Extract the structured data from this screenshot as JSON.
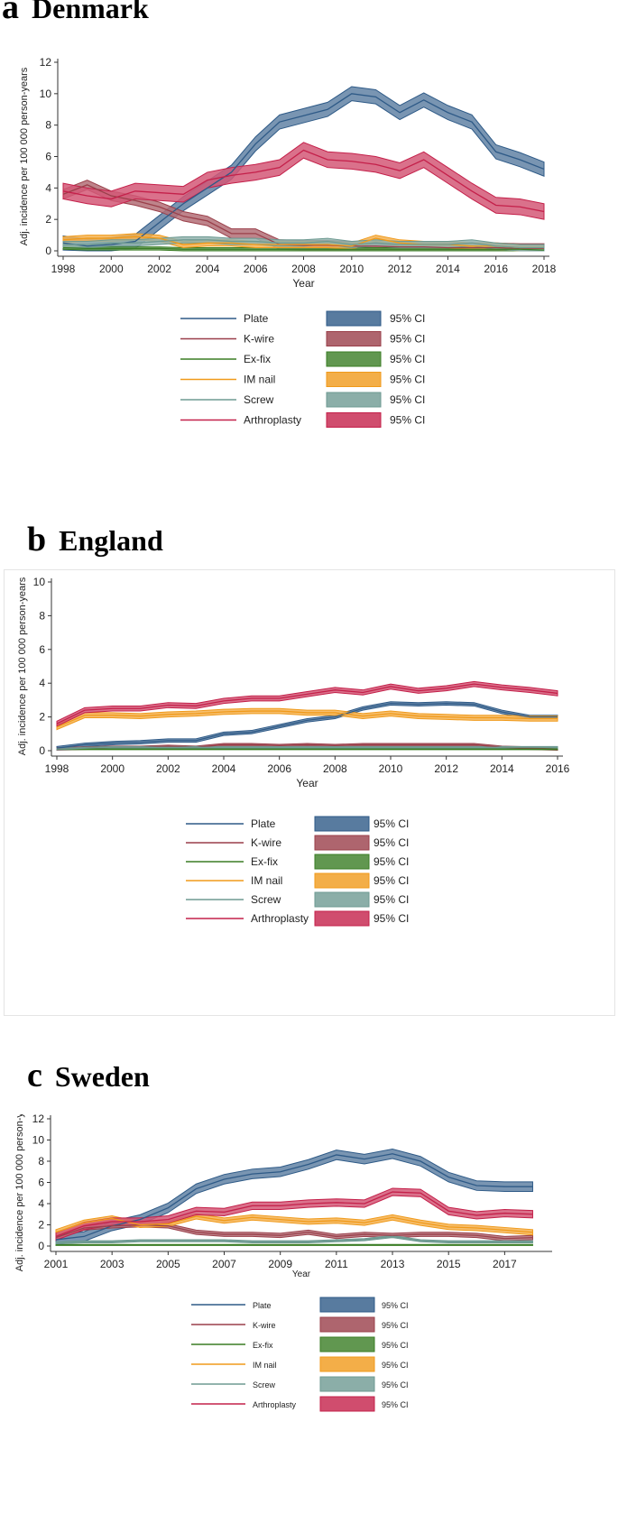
{
  "panels": [
    {
      "letter": "a",
      "country": "Denmark"
    },
    {
      "letter": "b",
      "country": "England"
    },
    {
      "letter": "c",
      "country": "Sweden"
    }
  ],
  "colors": {
    "Plate": "#2e5a87",
    "K-wire": "#9a3f4a",
    "Ex-fix": "#3a7d24",
    "IM nail": "#f09a1a",
    "Screw": "#6e9a92",
    "Arthroplasty": "#c4204a"
  },
  "chart_data": [
    {
      "type": "line",
      "panel": "a",
      "title": "Denmark",
      "xlabel": "Year",
      "ylabel": "Adj. incidence per 100 000 person-years",
      "xlim": [
        1998,
        2018
      ],
      "ylim": [
        0,
        12
      ],
      "xticks": [
        1998,
        2000,
        2002,
        2004,
        2006,
        2008,
        2010,
        2012,
        2014,
        2016,
        2018
      ],
      "yticks": [
        0,
        2,
        4,
        6,
        8,
        10,
        12
      ],
      "x": [
        1998,
        1999,
        2000,
        2001,
        2002,
        2003,
        2004,
        2005,
        2006,
        2007,
        2008,
        2009,
        2010,
        2011,
        2012,
        2013,
        2014,
        2015,
        2016,
        2017,
        2018
      ],
      "series": [
        {
          "name": "Plate",
          "values": [
            0.5,
            0.3,
            0.4,
            0.6,
            1.8,
            3.0,
            4.0,
            5.0,
            6.8,
            8.2,
            8.6,
            9.0,
            10.0,
            9.8,
            8.8,
            9.6,
            8.8,
            8.2,
            6.3,
            5.8,
            5.2
          ],
          "ci_width": 0.9
        },
        {
          "name": "K-wire",
          "values": [
            3.6,
            4.2,
            3.5,
            3.2,
            2.8,
            2.2,
            1.9,
            1.1,
            1.1,
            0.4,
            0.35,
            0.35,
            0.3,
            0.3,
            0.25,
            0.25,
            0.2,
            0.2,
            0.2,
            0.15,
            0.15
          ],
          "ci_width": 0.6
        },
        {
          "name": "Ex-fix",
          "values": [
            0.2,
            0.15,
            0.15,
            0.15,
            0.15,
            0.1,
            0.1,
            0.1,
            0.1,
            0.1,
            0.1,
            0.1,
            0.1,
            0.1,
            0.1,
            0.1,
            0.1,
            0.1,
            0.1,
            0.1,
            0.05
          ],
          "ci_width": 0.2
        },
        {
          "name": "IM nail",
          "values": [
            0.7,
            0.8,
            0.8,
            0.9,
            0.8,
            0.4,
            0.5,
            0.5,
            0.4,
            0.4,
            0.4,
            0.4,
            0.3,
            0.8,
            0.5,
            0.4,
            0.4,
            0.3,
            0.3,
            0.2,
            0.2
          ],
          "ci_width": 0.4
        },
        {
          "name": "Screw",
          "values": [
            0.4,
            0.4,
            0.5,
            0.5,
            0.6,
            0.7,
            0.7,
            0.6,
            0.6,
            0.5,
            0.5,
            0.6,
            0.4,
            0.5,
            0.4,
            0.4,
            0.4,
            0.5,
            0.3,
            0.2,
            0.2
          ],
          "ci_width": 0.4
        },
        {
          "name": "Arthroplasty",
          "values": [
            3.8,
            3.5,
            3.3,
            3.8,
            3.7,
            3.6,
            4.5,
            4.8,
            5.0,
            5.3,
            6.4,
            5.8,
            5.7,
            5.5,
            5.1,
            5.8,
            4.8,
            3.8,
            2.9,
            2.8,
            2.5
          ],
          "ci_width": 1.0
        }
      ],
      "legend": [
        {
          "label": "Plate",
          "ci_label": "95% CI"
        },
        {
          "label": "K-wire",
          "ci_label": "95% CI"
        },
        {
          "label": "Ex-fix",
          "ci_label": "95% CI"
        },
        {
          "label": "IM nail",
          "ci_label": "95% CI"
        },
        {
          "label": "Screw",
          "ci_label": "95% CI"
        },
        {
          "label": "Arthroplasty",
          "ci_label": "95% CI"
        }
      ]
    },
    {
      "type": "line",
      "panel": "b",
      "title": "England",
      "xlabel": "Year",
      "ylabel": "Adj. incidence per 100 000 person-years",
      "xlim": [
        1998,
        2016
      ],
      "ylim": [
        0,
        10
      ],
      "xticks": [
        1998,
        2000,
        2002,
        2004,
        2006,
        2008,
        2010,
        2012,
        2014,
        2016
      ],
      "yticks": [
        0,
        2,
        4,
        6,
        8,
        10
      ],
      "x": [
        1998,
        1999,
        2000,
        2001,
        2002,
        2003,
        2004,
        2005,
        2006,
        2007,
        2008,
        2009,
        2010,
        2011,
        2012,
        2013,
        2014,
        2015,
        2016
      ],
      "series": [
        {
          "name": "Plate",
          "values": [
            0.15,
            0.35,
            0.45,
            0.5,
            0.6,
            0.6,
            1.0,
            1.1,
            1.45,
            1.8,
            2.0,
            2.5,
            2.8,
            2.75,
            2.8,
            2.75,
            2.3,
            2.0,
            2.0
          ],
          "ci_width": 0.2
        },
        {
          "name": "K-wire",
          "values": [
            0.1,
            0.15,
            0.2,
            0.2,
            0.25,
            0.2,
            0.35,
            0.35,
            0.3,
            0.35,
            0.3,
            0.35,
            0.35,
            0.35,
            0.35,
            0.35,
            0.2,
            0.15,
            0.1
          ],
          "ci_width": 0.15
        },
        {
          "name": "Ex-fix",
          "values": [
            0.1,
            0.1,
            0.1,
            0.1,
            0.1,
            0.1,
            0.1,
            0.1,
            0.1,
            0.1,
            0.1,
            0.1,
            0.1,
            0.1,
            0.1,
            0.1,
            0.1,
            0.1,
            0.1
          ],
          "ci_width": 0.08
        },
        {
          "name": "IM nail",
          "values": [
            1.4,
            2.1,
            2.1,
            2.05,
            2.15,
            2.2,
            2.3,
            2.35,
            2.35,
            2.25,
            2.25,
            2.05,
            2.2,
            2.05,
            2.0,
            1.95,
            1.95,
            1.9,
            1.9
          ],
          "ci_width": 0.3
        },
        {
          "name": "Screw",
          "values": [
            0.1,
            0.15,
            0.2,
            0.2,
            0.2,
            0.2,
            0.2,
            0.2,
            0.2,
            0.2,
            0.2,
            0.2,
            0.2,
            0.2,
            0.2,
            0.2,
            0.2,
            0.2,
            0.2
          ],
          "ci_width": 0.1
        },
        {
          "name": "Arthroplasty",
          "values": [
            1.6,
            2.4,
            2.5,
            2.5,
            2.7,
            2.65,
            2.95,
            3.1,
            3.1,
            3.35,
            3.6,
            3.45,
            3.8,
            3.55,
            3.7,
            3.95,
            3.75,
            3.6,
            3.4
          ],
          "ci_width": 0.3
        }
      ],
      "legend": [
        {
          "label": "Plate",
          "ci_label": "95% CI"
        },
        {
          "label": "K-wire",
          "ci_label": "95% CI"
        },
        {
          "label": "Ex-fix",
          "ci_label": "95% CI"
        },
        {
          "label": "IM nail",
          "ci_label": "95% CI"
        },
        {
          "label": "Screw",
          "ci_label": "95% CI"
        },
        {
          "label": "Arthroplasty",
          "ci_label": "95% CI"
        }
      ]
    },
    {
      "type": "line",
      "panel": "c",
      "title": "Sweden",
      "xlabel": "Year",
      "ylabel": "Adj. incidence per 100 000 person-years",
      "xlim": [
        2001,
        2018.5
      ],
      "ylim": [
        0,
        12
      ],
      "xticks": [
        2001,
        2003,
        2005,
        2007,
        2009,
        2011,
        2013,
        2015,
        2017
      ],
      "yticks": [
        0,
        2,
        4,
        6,
        8,
        10,
        12
      ],
      "x": [
        2001,
        2002,
        2003,
        2004,
        2005,
        2006,
        2007,
        2008,
        2009,
        2010,
        2011,
        2012,
        2013,
        2014,
        2015,
        2016,
        2017,
        2018
      ],
      "series": [
        {
          "name": "Plate",
          "values": [
            0.6,
            0.9,
            1.9,
            2.5,
            3.6,
            5.4,
            6.3,
            6.8,
            7.0,
            7.7,
            8.6,
            8.2,
            8.7,
            8.0,
            6.5,
            5.7,
            5.6,
            5.6
          ],
          "ci_width": 0.9
        },
        {
          "name": "K-wire",
          "values": [
            0.8,
            1.7,
            1.9,
            2.0,
            1.9,
            1.3,
            1.1,
            1.1,
            1.0,
            1.3,
            0.9,
            1.1,
            1.0,
            1.1,
            1.1,
            1.0,
            0.7,
            0.8
          ],
          "ci_width": 0.4
        },
        {
          "name": "Ex-fix",
          "values": [
            0.1,
            0.1,
            0.1,
            0.1,
            0.1,
            0.1,
            0.1,
            0.1,
            0.1,
            0.1,
            0.1,
            0.1,
            0.1,
            0.1,
            0.1,
            0.1,
            0.1,
            0.1
          ],
          "ci_width": 0.1
        },
        {
          "name": "IM nail",
          "values": [
            1.3,
            2.2,
            2.6,
            2.0,
            2.1,
            2.8,
            2.4,
            2.7,
            2.5,
            2.3,
            2.4,
            2.2,
            2.7,
            2.2,
            1.8,
            1.7,
            1.5,
            1.3
          ],
          "ci_width": 0.5
        },
        {
          "name": "Screw",
          "values": [
            0.3,
            0.4,
            0.4,
            0.5,
            0.5,
            0.5,
            0.5,
            0.4,
            0.4,
            0.4,
            0.5,
            0.6,
            0.9,
            0.5,
            0.4,
            0.4,
            0.4,
            0.4
          ],
          "ci_width": 0.2
        },
        {
          "name": "Arthroplasty",
          "values": [
            0.9,
            1.9,
            2.3,
            2.3,
            2.5,
            3.3,
            3.2,
            3.8,
            3.8,
            4.0,
            4.1,
            4.0,
            5.1,
            5.0,
            3.3,
            2.9,
            3.1,
            3.0
          ],
          "ci_width": 0.7
        }
      ],
      "legend": [
        {
          "label": "Plate",
          "ci_label": "95% CI"
        },
        {
          "label": "K-wire",
          "ci_label": "95% CI"
        },
        {
          "label": "Ex-fix",
          "ci_label": "95% CI"
        },
        {
          "label": "IM nail",
          "ci_label": "95% CI"
        },
        {
          "label": "Screw",
          "ci_label": "95% CI"
        },
        {
          "label": "Arthroplasty",
          "ci_label": "95% CI"
        }
      ]
    }
  ]
}
